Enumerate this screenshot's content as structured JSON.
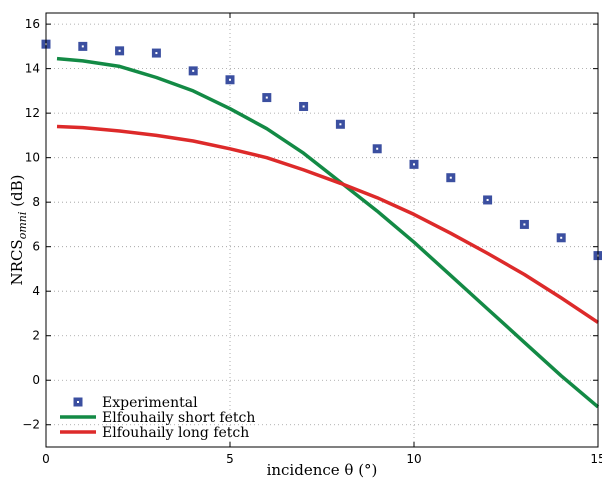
{
  "chart_data": {
    "type": "line",
    "xlabel": "incidence θ (°)",
    "ylabel": {
      "main": "NRCS",
      "sub": "omni",
      "suffix": " (dB)"
    },
    "xlim": [
      0,
      15
    ],
    "ylim": [
      -3,
      16.5
    ],
    "xticks": [
      0,
      5,
      10,
      15
    ],
    "yticks": [
      -2,
      0,
      2,
      4,
      6,
      8,
      10,
      12,
      14,
      16
    ],
    "grid": true,
    "legend_position": "bottom-left",
    "series": [
      {
        "name": "Experimental",
        "kind": "markers",
        "color": "#3b4fa0",
        "x": [
          0,
          1,
          2,
          3,
          4,
          5,
          6,
          7,
          8,
          9,
          10,
          11,
          12,
          13,
          14,
          15
        ],
        "y": [
          15.1,
          15.0,
          14.8,
          14.7,
          13.9,
          13.5,
          12.7,
          12.3,
          11.5,
          10.4,
          9.7,
          9.1,
          8.1,
          7.0,
          6.4,
          5.6
        ]
      },
      {
        "name": "Elfouhaily short fetch",
        "kind": "line",
        "color": "#138a45",
        "x": [
          0.3,
          1,
          2,
          3,
          4,
          5,
          6,
          7,
          8,
          9,
          10,
          11,
          12,
          13,
          14,
          15
        ],
        "y": [
          14.45,
          14.35,
          14.1,
          13.6,
          13.0,
          12.2,
          11.3,
          10.2,
          8.9,
          7.6,
          6.2,
          4.7,
          3.2,
          1.7,
          0.2,
          -1.2
        ]
      },
      {
        "name": "Elfouhaily long fetch",
        "kind": "line",
        "color": "#dd2a2a",
        "x": [
          0.3,
          1,
          2,
          3,
          4,
          5,
          6,
          7,
          8,
          9,
          10,
          11,
          12,
          13,
          14,
          15
        ],
        "y": [
          11.4,
          11.35,
          11.2,
          11.0,
          10.75,
          10.4,
          10.0,
          9.45,
          8.85,
          8.2,
          7.45,
          6.6,
          5.7,
          4.75,
          3.7,
          2.6
        ]
      }
    ]
  }
}
